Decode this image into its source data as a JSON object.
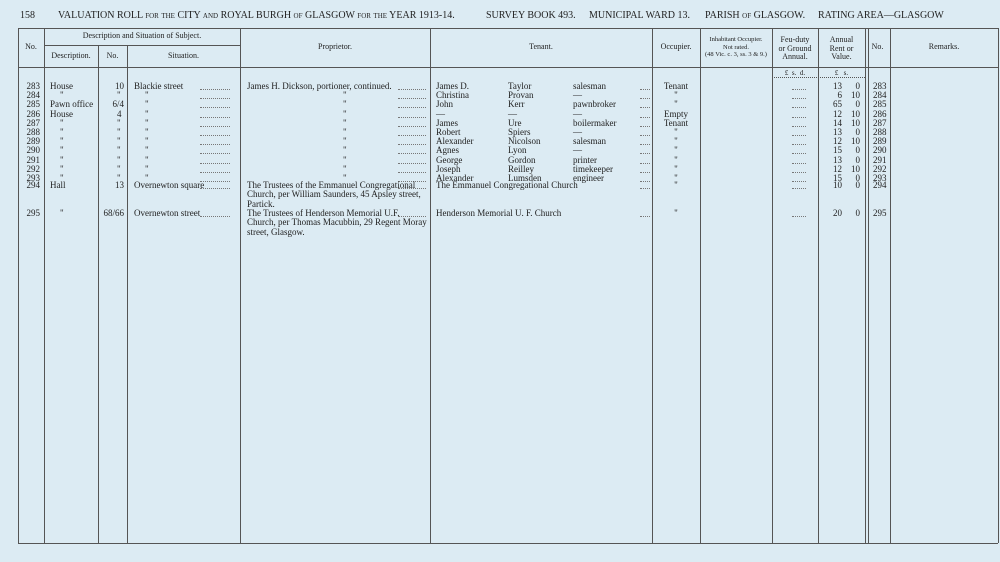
{
  "header": {
    "page": "158",
    "title": "VALUATION ROLL for the CITY and ROYAL BURGH of GLASGOW for the YEAR 1913-14.",
    "survey": "SURVEY BOOK 493.",
    "ward": "MUNICIPAL WARD 13.",
    "parish": "PARISH of GLASGOW.",
    "area": "RATING AREA—GLASGOW"
  },
  "columns": {
    "no": "No.",
    "subject": "Description and Situation of Subject.",
    "description": "Description.",
    "number": "No.",
    "situation": "Situation.",
    "proprietor": "Proprietor.",
    "tenant": "Tenant.",
    "occupier": "Occupier.",
    "inhabitant": [
      "Inhabitant Occupier.",
      "Not rated.",
      "(48 Vic. c. 3, ss. 3 & 9.)"
    ],
    "feu": [
      "Feu-duty",
      "or Ground",
      "Annual."
    ],
    "feu_units": "£  s.  d.",
    "rent": [
      "Annual",
      "Rent or",
      "Value."
    ],
    "rent_units": "£   s.",
    "no2": "No.",
    "remarks": "Remarks."
  },
  "table": {
    "rows": [
      [
        "283",
        "House",
        "10",
        "Blackie street",
        "James H. Dickson, portioner, continued.",
        "James D.",
        "Taylor",
        "salesman",
        "Tenant",
        "13",
        "0",
        "283"
      ],
      [
        "284",
        "\"",
        "\"",
        "\"",
        "\"",
        "Christina",
        "Provan",
        "—",
        "\"",
        "6",
        "10",
        "284"
      ],
      [
        "285",
        "Pawn office",
        "6/4",
        "\"",
        "\"",
        "John",
        "Kerr",
        "pawnbroker",
        "\"",
        "65",
        "0",
        "285"
      ],
      [
        "286",
        "House",
        "4",
        "\"",
        "\"",
        "—",
        "—",
        "—",
        "Empty",
        "12",
        "10",
        "286"
      ],
      [
        "287",
        "\"",
        "\"",
        "\"",
        "\"",
        "James",
        "Ure",
        "boilermaker",
        "Tenant",
        "14",
        "10",
        "287"
      ],
      [
        "288",
        "\"",
        "\"",
        "\"",
        "\"",
        "Robert",
        "Spiers",
        "—",
        "\"",
        "13",
        "0",
        "288"
      ],
      [
        "289",
        "\"",
        "\"",
        "\"",
        "\"",
        "Alexander",
        "Nicolson",
        "salesman",
        "\"",
        "12",
        "10",
        "289"
      ],
      [
        "290",
        "\"",
        "\"",
        "\"",
        "\"",
        "Agnes",
        "Lyon",
        "—",
        "\"",
        "15",
        "0",
        "290"
      ],
      [
        "291",
        "\"",
        "\"",
        "\"",
        "\"",
        "George",
        "Gordon",
        "printer",
        "\"",
        "13",
        "0",
        "291"
      ],
      [
        "292",
        "\"",
        "\"",
        "\"",
        "\"",
        "Joseph",
        "Reilley",
        "timekeeper",
        "\"",
        "12",
        "10",
        "292"
      ],
      [
        "293",
        "\"",
        "\"",
        "\"",
        "\"",
        "Alexander",
        "Lumsden",
        "engineer",
        "\"",
        "15",
        "0",
        "293"
      ],
      [
        "294",
        "Hall",
        "13",
        "Overnewton square",
        "The Trustees of the Emmanuel Congregational Church, per William Saunders, 45 Apsley street, Partick.",
        "The Emmanuel Congregational Church",
        "",
        "",
        "\"",
        "10",
        "0",
        "294"
      ],
      [
        "295",
        "\"",
        "68/66",
        "Overnewton street",
        "The Trustees of Henderson Memorial U.F. Church, per Thomas Macubbin, 29 Regent Moray street, Glasgow.",
        "Henderson Memorial U. F. Church",
        "",
        "",
        "\"",
        "20",
        "0",
        "295"
      ]
    ]
  }
}
